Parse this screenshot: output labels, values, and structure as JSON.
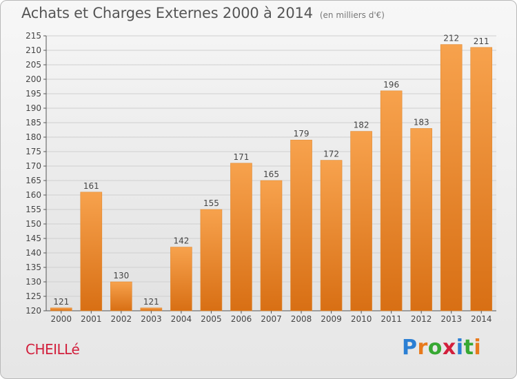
{
  "header": {
    "title": "Achats et Charges Externes 2000 à 2014",
    "subtitle": "(en milliers d'€)"
  },
  "footer": {
    "commune": "CHEILLé",
    "brand_letters": [
      "P",
      "r",
      "o",
      "x",
      "i",
      "t",
      "i"
    ],
    "brand_colors": [
      "#2b7fd4",
      "#e87a1c",
      "#37a833",
      "#d21f3c",
      "#2b7fd4",
      "#37a833",
      "#e87a1c"
    ]
  },
  "chart_data": {
    "type": "bar",
    "title": "Achats et Charges Externes 2000 à 2014",
    "subtitle": "(en milliers d'€)",
    "categories": [
      "2000",
      "2001",
      "2002",
      "2003",
      "2004",
      "2005",
      "2006",
      "2007",
      "2008",
      "2009",
      "2010",
      "2011",
      "2012",
      "2013",
      "2014"
    ],
    "values": [
      121,
      161,
      130,
      121,
      142,
      155,
      171,
      165,
      179,
      172,
      182,
      196,
      183,
      212,
      211
    ],
    "ylim": [
      120,
      215
    ],
    "yticks": [
      120,
      125,
      130,
      135,
      140,
      145,
      150,
      155,
      160,
      165,
      170,
      175,
      180,
      185,
      190,
      195,
      200,
      205,
      210,
      215
    ],
    "grid": true,
    "bar_color_top": "#f7a24d",
    "bar_color_bottom": "#d86f14"
  }
}
